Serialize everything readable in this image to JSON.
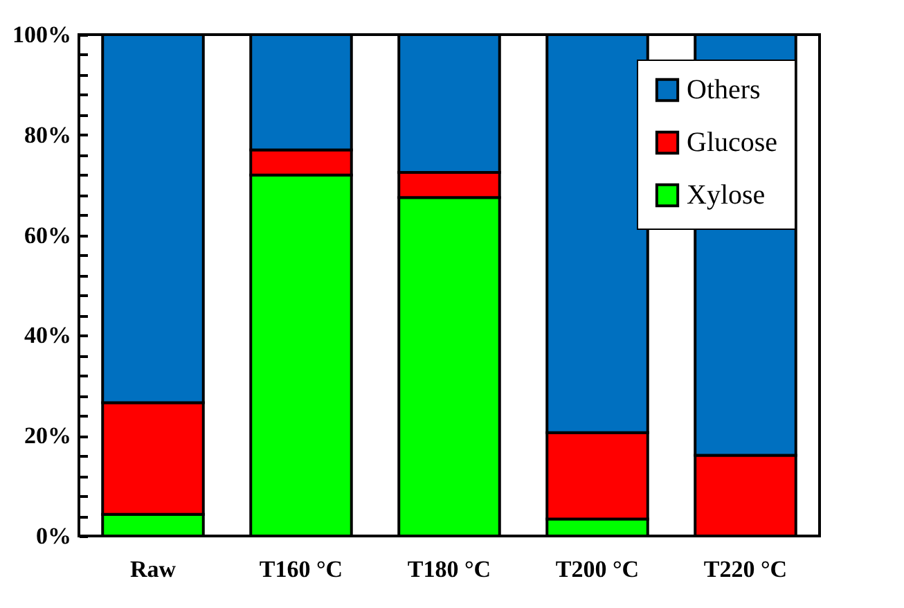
{
  "chart_data": {
    "type": "bar",
    "stacked": true,
    "categories": [
      "Raw",
      "T160 °C",
      "T180 °C",
      "T200 °C",
      "T220 °C"
    ],
    "series": [
      {
        "name": "Xylose",
        "color": "#00ff00",
        "values": [
          4.3,
          72.0,
          67.5,
          3.4,
          null
        ]
      },
      {
        "name": "Glucose",
        "color": "#ff0000",
        "values": [
          22.3,
          5.0,
          5.0,
          17.2,
          16.1
        ]
      },
      {
        "name": "Others",
        "color": "#0070c0",
        "values": [
          73.4,
          23.0,
          27.5,
          79.4,
          83.9
        ]
      }
    ],
    "ylim": [
      0,
      100
    ],
    "yticks": [
      {
        "value": 0,
        "label": "0%"
      },
      {
        "value": 4,
        "label": null
      },
      {
        "value": 8,
        "label": null
      },
      {
        "value": 12,
        "label": null
      },
      {
        "value": 16,
        "label": null
      },
      {
        "value": 20,
        "label": "20%"
      },
      {
        "value": 24,
        "label": null
      },
      {
        "value": 28,
        "label": null
      },
      {
        "value": 32,
        "label": null
      },
      {
        "value": 36,
        "label": null
      },
      {
        "value": 40,
        "label": "40%"
      },
      {
        "value": 44,
        "label": null
      },
      {
        "value": 48,
        "label": null
      },
      {
        "value": 52,
        "label": null
      },
      {
        "value": 56,
        "label": null
      },
      {
        "value": 60,
        "label": "60%"
      },
      {
        "value": 64,
        "label": null
      },
      {
        "value": 68,
        "label": null
      },
      {
        "value": 72,
        "label": null
      },
      {
        "value": 76,
        "label": null
      },
      {
        "value": 80,
        "label": "80%"
      },
      {
        "value": 84,
        "label": null
      },
      {
        "value": 88,
        "label": null
      },
      {
        "value": 92,
        "label": null
      },
      {
        "value": 96,
        "label": null
      },
      {
        "value": 100,
        "label": "100%"
      }
    ],
    "legend": "top right",
    "grid": false
  }
}
